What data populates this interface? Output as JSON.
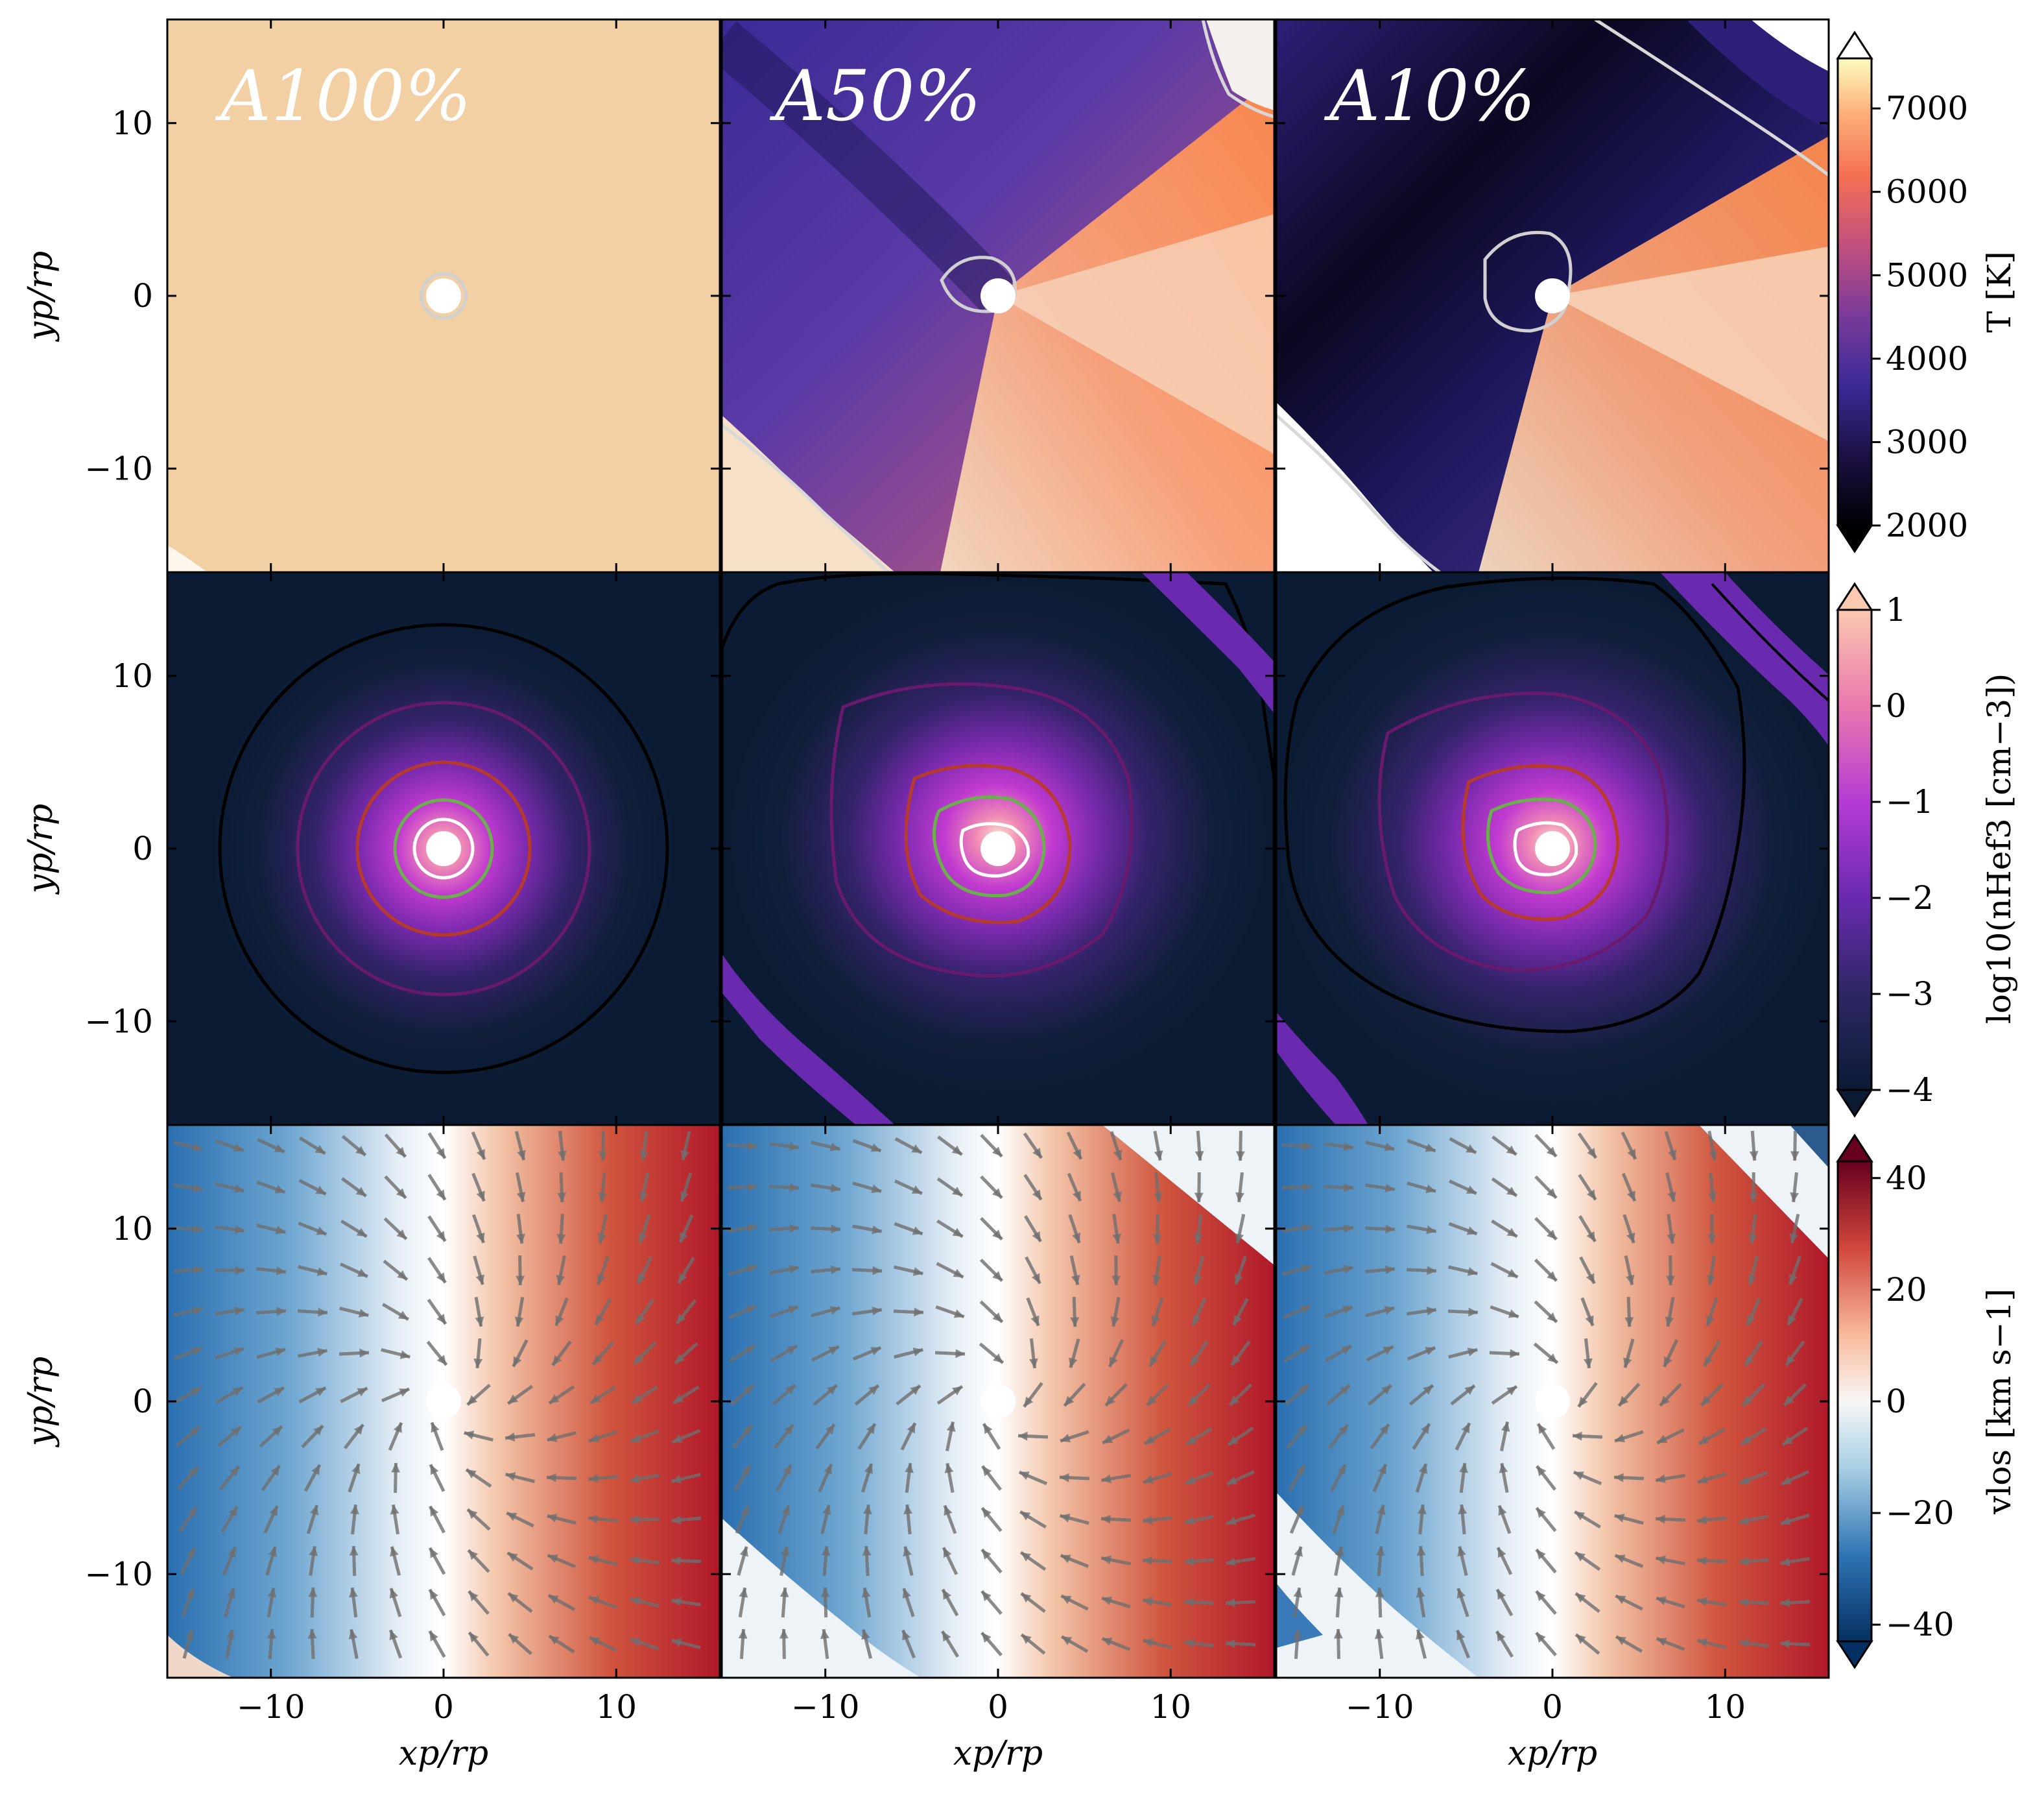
{
  "chart_data": {
    "type": "heatmap",
    "grid": {
      "rows": 3,
      "cols": 3
    },
    "panel_labels": [
      "A100%",
      "A50%",
      "A10%"
    ],
    "xlabel": "xp/rp",
    "ylabel": "yp/rp",
    "xlim": [
      -16,
      16
    ],
    "ylim": [
      -16,
      16
    ],
    "xticks": [
      -10,
      0,
      10
    ],
    "yticks": [
      -10,
      0,
      10
    ],
    "rows": [
      {
        "quantity": "temperature",
        "colorbar_label": "T [K]",
        "cmap": "magma",
        "clim": [
          2000,
          7600
        ],
        "colorbar_ticks": [
          2000,
          3000,
          4000,
          5000,
          6000,
          7000
        ],
        "contour_color": "#d0d0d0"
      },
      {
        "quantity": "log10 He triplet density",
        "colorbar_label": "log10(nHef3 [cm−3])",
        "cmap": "magma",
        "clim": [
          -4,
          1
        ],
        "colorbar_ticks": [
          -4,
          -3,
          -2,
          -1,
          0,
          1
        ],
        "contour_colors": [
          "#000000",
          "#6a1a6e",
          "#b83a2a",
          "#6ab04c",
          "#ffffff"
        ]
      },
      {
        "quantity": "line-of-sight velocity",
        "colorbar_label": "vlos [km s−1]",
        "cmap": "RdBu_r",
        "clim": [
          -43,
          43
        ],
        "colorbar_ticks": [
          -40,
          -20,
          0,
          20,
          40
        ],
        "vectors": "velocity arrows",
        "arrow_color": "#6f6f6f"
      }
    ],
    "colors": {
      "uniform_temperature": "#f3cfa4",
      "density_background": "#0b1b33"
    }
  }
}
